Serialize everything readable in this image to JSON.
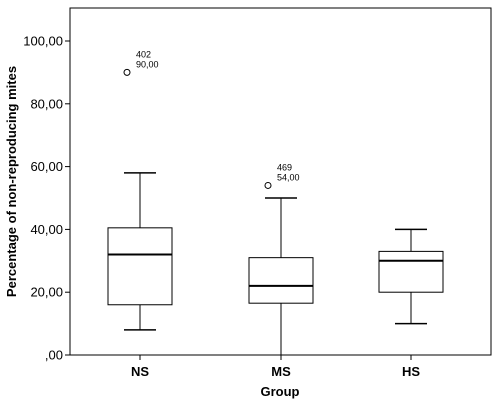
{
  "chart_data": {
    "type": "boxplot",
    "xlabel": "Group",
    "ylabel": "Percentage of non-reproducing mites",
    "ylim": [
      0,
      110
    ],
    "yticks": [
      {
        "value": 0,
        "label": ",00"
      },
      {
        "value": 20,
        "label": "20,00"
      },
      {
        "value": 40,
        "label": "40,00"
      },
      {
        "value": 60,
        "label": "60,00"
      },
      {
        "value": 80,
        "label": "80,00"
      },
      {
        "value": 100,
        "label": "100,00"
      }
    ],
    "grid": false,
    "categories": [
      "NS",
      "MS",
      "HS"
    ],
    "boxes": [
      {
        "category": "NS",
        "whisker_low": 8,
        "q1": 16,
        "median": 32,
        "q3": 40.5,
        "whisker_high": 58,
        "outliers": [
          {
            "value": 90,
            "case": "402",
            "value_label": "90,00"
          }
        ]
      },
      {
        "category": "MS",
        "whisker_low": 0,
        "q1": 16.5,
        "median": 22,
        "q3": 31,
        "whisker_high": 50,
        "outliers": [
          {
            "value": 54,
            "case": "469",
            "value_label": "54,00"
          }
        ]
      },
      {
        "category": "HS",
        "whisker_low": 10,
        "q1": 20,
        "median": 30,
        "q3": 33,
        "whisker_high": 40,
        "outliers": []
      }
    ]
  }
}
